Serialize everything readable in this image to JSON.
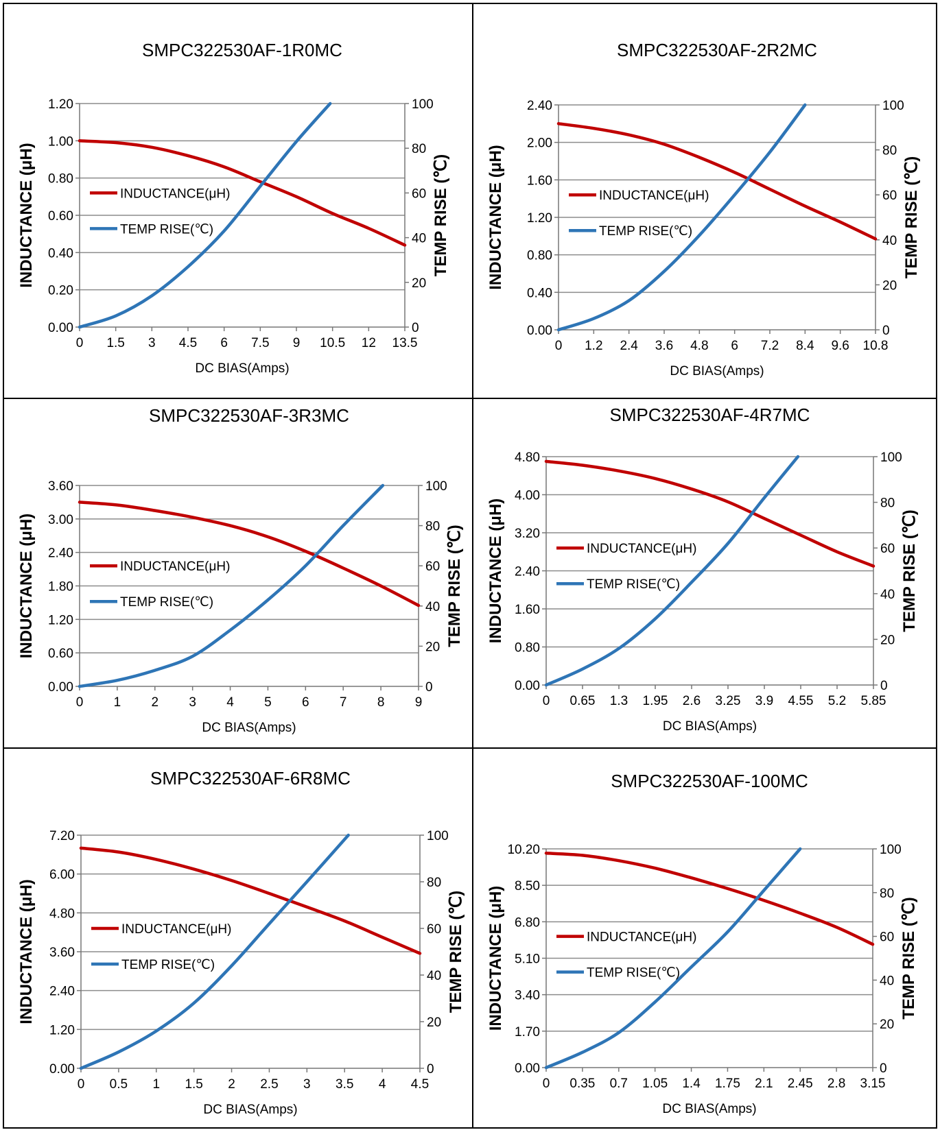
{
  "chart_data": [
    {
      "type": "line",
      "title": "SMPC322530AF-1R0MC",
      "xlabel": "DC BIAS(Amps)",
      "ylabel": "INDUCTANCE  (μH)",
      "y2label": "TEMP RISE (℃)",
      "xlim": [
        0,
        13.5
      ],
      "ylim": [
        0,
        1.2
      ],
      "y2lim": [
        0,
        100
      ],
      "xticks": [
        "0",
        "1.5",
        "3",
        "4.5",
        "6",
        "7.5",
        "9",
        "10.5",
        "12",
        "13.5"
      ],
      "yticks": [
        "0.00",
        "0.20",
        "0.40",
        "0.60",
        "0.80",
        "1.00",
        "1.20"
      ],
      "y2ticks": [
        "0",
        "20",
        "40",
        "60",
        "80",
        "100"
      ],
      "grid": true,
      "legend": "left",
      "series": [
        {
          "name": "INDUCTANCE(μH)",
          "color": "#c00000",
          "axis": "left",
          "x": [
            0,
            1.5,
            3,
            4.5,
            6,
            7.5,
            9,
            10.5,
            12,
            13.5
          ],
          "y": [
            1.0,
            0.99,
            0.965,
            0.92,
            0.86,
            0.78,
            0.7,
            0.61,
            0.53,
            0.44
          ]
        },
        {
          "name": "TEMP RISE(℃)",
          "color": "#2e75b6",
          "axis": "right",
          "x": [
            0,
            1.5,
            3,
            4.5,
            6,
            7.5,
            9,
            10.4
          ],
          "y": [
            0,
            5,
            14,
            27,
            43,
            63,
            83,
            100
          ]
        }
      ]
    },
    {
      "type": "line",
      "title": "SMPC322530AF-2R2MC",
      "xlabel": "DC BIAS(Amps)",
      "ylabel": "INDUCTANCE  (μH)",
      "y2label": "TEMP RISE (℃)",
      "xlim": [
        0,
        10.8
      ],
      "ylim": [
        0,
        2.4
      ],
      "y2lim": [
        0,
        100
      ],
      "xticks": [
        "0",
        "1.2",
        "2.4",
        "3.6",
        "4.8",
        "6",
        "7.2",
        "8.4",
        "9.6",
        "10.8"
      ],
      "yticks": [
        "0.00",
        "0.40",
        "0.80",
        "1.20",
        "1.60",
        "2.00",
        "2.40"
      ],
      "y2ticks": [
        "0",
        "20",
        "40",
        "60",
        "80",
        "100"
      ],
      "grid": true,
      "legend": "left",
      "series": [
        {
          "name": "INDUCTANCE(μH)",
          "color": "#c00000",
          "axis": "left",
          "x": [
            0,
            1.2,
            2.4,
            3.6,
            4.8,
            6,
            7.2,
            8.4,
            9.6,
            10.8
          ],
          "y": [
            2.2,
            2.15,
            2.08,
            1.98,
            1.84,
            1.68,
            1.5,
            1.32,
            1.15,
            0.97
          ]
        },
        {
          "name": "TEMP RISE(℃)",
          "color": "#2e75b6",
          "axis": "right",
          "x": [
            0,
            1.2,
            2.4,
            3.6,
            4.8,
            6,
            7.2,
            8.4
          ],
          "y": [
            0,
            5,
            13,
            26,
            42,
            60,
            79,
            100
          ]
        }
      ]
    },
    {
      "type": "line",
      "title": "SMPC322530AF-3R3MC",
      "xlabel": "DC BIAS(Amps)",
      "ylabel": "INDUCTANCE  (μH)",
      "y2label": "TEMP RISE (℃)",
      "xlim": [
        0,
        9
      ],
      "ylim": [
        0,
        3.6
      ],
      "y2lim": [
        0,
        100
      ],
      "xticks": [
        "0",
        "1",
        "2",
        "3",
        "4",
        "5",
        "6",
        "7",
        "8",
        "9"
      ],
      "yticks": [
        "0.00",
        "0.60",
        "1.20",
        "1.80",
        "2.40",
        "3.00",
        "3.60"
      ],
      "y2ticks": [
        "0",
        "20",
        "40",
        "60",
        "80",
        "100"
      ],
      "grid": true,
      "legend": "left",
      "series": [
        {
          "name": "INDUCTANCE(μH)",
          "color": "#c00000",
          "axis": "left",
          "x": [
            0,
            1,
            2,
            3,
            4,
            5,
            6,
            7,
            8,
            9
          ],
          "y": [
            3.3,
            3.25,
            3.15,
            3.03,
            2.88,
            2.68,
            2.42,
            2.12,
            1.8,
            1.45
          ]
        },
        {
          "name": "TEMP RISE(℃)",
          "color": "#2e75b6",
          "axis": "right",
          "x": [
            0,
            1,
            2,
            3,
            4,
            5,
            6,
            7,
            8.05
          ],
          "y": [
            0,
            3,
            8,
            15,
            28,
            43,
            60,
            80,
            100
          ]
        }
      ]
    },
    {
      "type": "line",
      "title": "SMPC322530AF-4R7MC",
      "xlabel": "DC BIAS(Amps)",
      "ylabel": "INDUCTANCE  (μH)",
      "y2label": "TEMP RISE (℃)",
      "xlim": [
        0,
        5.85
      ],
      "ylim": [
        0,
        4.8
      ],
      "y2lim": [
        0,
        100
      ],
      "xticks": [
        "0",
        "0.65",
        "1.3",
        "1.95",
        "2.6",
        "3.25",
        "3.9",
        "4.55",
        "5.2",
        "5.85"
      ],
      "yticks": [
        "0.00",
        "0.80",
        "1.60",
        "2.40",
        "3.20",
        "4.00",
        "4.80"
      ],
      "y2ticks": [
        "0",
        "20",
        "40",
        "60",
        "80",
        "100"
      ],
      "grid": true,
      "legend": "left",
      "series": [
        {
          "name": "INDUCTANCE(μH)",
          "color": "#c00000",
          "axis": "left",
          "x": [
            0,
            0.65,
            1.3,
            1.95,
            2.6,
            3.25,
            3.9,
            4.55,
            5.2,
            5.85
          ],
          "y": [
            4.7,
            4.62,
            4.5,
            4.34,
            4.12,
            3.85,
            3.5,
            3.15,
            2.8,
            2.5
          ]
        },
        {
          "name": "TEMP RISE(℃)",
          "color": "#2e75b6",
          "axis": "right",
          "x": [
            0,
            0.65,
            1.3,
            1.95,
            2.6,
            3.25,
            3.9,
            4.5
          ],
          "y": [
            0,
            7,
            16,
            29,
            45,
            62,
            82,
            100
          ]
        }
      ]
    },
    {
      "type": "line",
      "title": "SMPC322530AF-6R8MC",
      "xlabel": "DC BIAS(Amps)",
      "ylabel": "INDUCTANCE  (μH)",
      "y2label": "TEMP RISE (℃)",
      "xlim": [
        0,
        4.5
      ],
      "ylim": [
        0,
        7.2
      ],
      "y2lim": [
        0,
        100
      ],
      "xticks": [
        "0",
        "0.5",
        "1",
        "1.5",
        "2",
        "2.5",
        "3",
        "3.5",
        "4",
        "4.5"
      ],
      "yticks": [
        "0.00",
        "1.20",
        "2.40",
        "3.60",
        "4.80",
        "6.00",
        "7.20"
      ],
      "y2ticks": [
        "0",
        "20",
        "40",
        "60",
        "80",
        "100"
      ],
      "grid": true,
      "legend": "left",
      "series": [
        {
          "name": "INDUCTANCE(μH)",
          "color": "#c00000",
          "axis": "left",
          "x": [
            0,
            0.5,
            1,
            1.5,
            2,
            2.5,
            3,
            3.5,
            4,
            4.5
          ],
          "y": [
            6.8,
            6.68,
            6.45,
            6.15,
            5.8,
            5.4,
            4.98,
            4.55,
            4.05,
            3.55
          ]
        },
        {
          "name": "TEMP RISE(℃)",
          "color": "#2e75b6",
          "axis": "right",
          "x": [
            0,
            0.5,
            1,
            1.5,
            2,
            2.5,
            3,
            3.55
          ],
          "y": [
            0,
            7,
            16,
            28,
            44,
            62,
            80,
            100
          ]
        }
      ]
    },
    {
      "type": "line",
      "title": "SMPC322530AF-100MC",
      "xlabel": "DC BIAS(Amps)",
      "ylabel": "INDUCTANCE  (μH)",
      "y2label": "TEMP RISE (℃)",
      "xlim": [
        0,
        3.15
      ],
      "ylim": [
        0,
        10.2
      ],
      "y2lim": [
        0,
        100
      ],
      "xticks": [
        "0",
        "0.35",
        "0.7",
        "1.05",
        "1.4",
        "1.75",
        "2.1",
        "2.45",
        "2.8",
        "3.15"
      ],
      "yticks": [
        "0.00",
        "1.70",
        "3.40",
        "5.10",
        "6.80",
        "8.50",
        "10.20"
      ],
      "y2ticks": [
        "0",
        "20",
        "40",
        "60",
        "80",
        "100"
      ],
      "grid": true,
      "legend": "left",
      "series": [
        {
          "name": "INDUCTANCE(μH)",
          "color": "#c00000",
          "axis": "left",
          "x": [
            0,
            0.35,
            0.7,
            1.05,
            1.4,
            1.75,
            2.1,
            2.45,
            2.8,
            3.15
          ],
          "y": [
            10.0,
            9.9,
            9.65,
            9.3,
            8.85,
            8.35,
            7.8,
            7.2,
            6.55,
            5.75
          ]
        },
        {
          "name": "TEMP RISE(℃)",
          "color": "#2e75b6",
          "axis": "right",
          "x": [
            0,
            0.35,
            0.7,
            1.05,
            1.4,
            1.75,
            2.1,
            2.45
          ],
          "y": [
            0,
            7,
            16,
            30,
            46,
            62,
            81,
            100
          ]
        }
      ]
    }
  ]
}
